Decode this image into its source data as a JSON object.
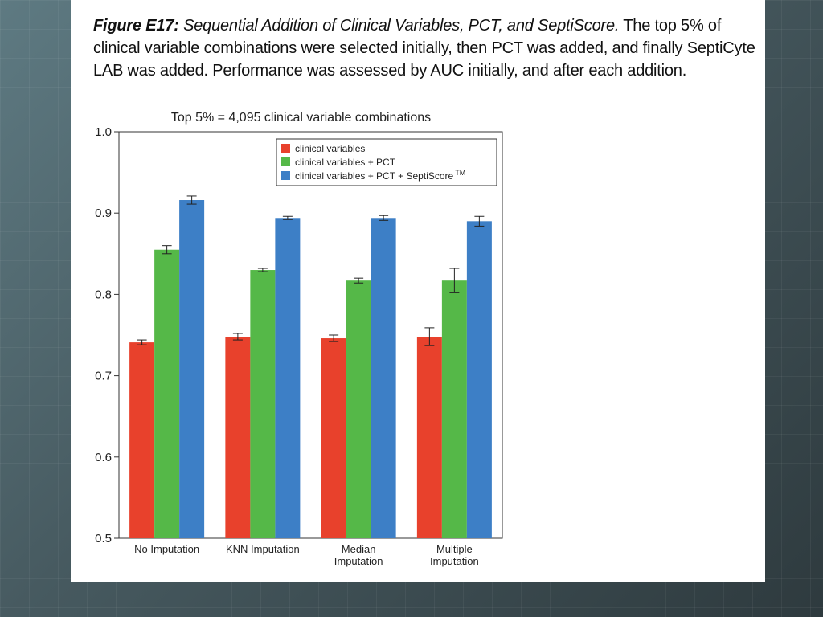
{
  "figure": {
    "label": "Figure E17:",
    "title": "Sequential Addition of Clinical Variables, PCT, and SeptiScore.",
    "body": "The top 5% of clinical variable combinations were selected initially, then PCT was added, and finally SeptiCyte LAB was added. Performance was assessed by AUC initially, and after each addition."
  },
  "colors": {
    "clinical": "#e8412c",
    "pct": "#55b848",
    "septiscore": "#3d7fc6"
  },
  "chart_data": {
    "type": "bar",
    "title": "Top 5% = 4,095 clinical variable combinations",
    "xlabel": "",
    "ylabel": "",
    "ylim": [
      0.5,
      1.0
    ],
    "yticks": [
      "0.5",
      "0.6",
      "0.7",
      "0.8",
      "0.9",
      "1.0"
    ],
    "categories": [
      [
        "No Imputation"
      ],
      [
        "KNN Imputation"
      ],
      [
        "Median",
        "Imputation"
      ],
      [
        "Multiple",
        "Imputation"
      ]
    ],
    "series": [
      {
        "name": "clinical variables",
        "color": "#e8412c",
        "values": [
          0.741,
          0.748,
          0.746,
          0.748
        ],
        "error": [
          0.003,
          0.004,
          0.004,
          0.011
        ]
      },
      {
        "name": "clinical variables + PCT",
        "color": "#55b848",
        "values": [
          0.855,
          0.83,
          0.817,
          0.817
        ],
        "error": [
          0.005,
          0.002,
          0.003,
          0.015
        ]
      },
      {
        "name": "clinical variables + PCT + SeptiScore",
        "superscript": "TM",
        "color": "#3d7fc6",
        "values": [
          0.916,
          0.894,
          0.894,
          0.89
        ],
        "error": [
          0.005,
          0.002,
          0.003,
          0.006
        ]
      }
    ],
    "legend_position": "top-right",
    "grid": false
  }
}
